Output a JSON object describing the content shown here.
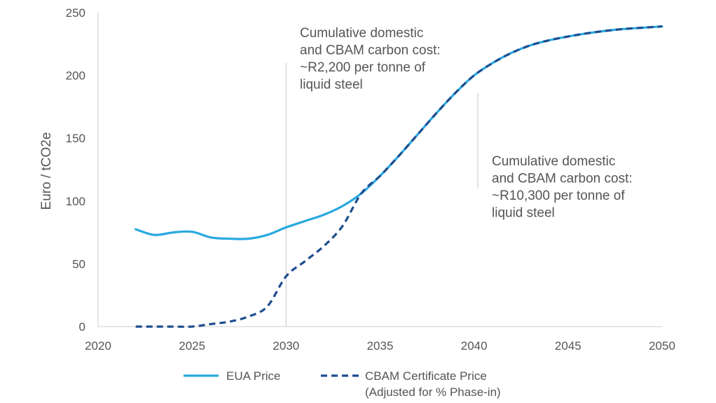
{
  "chart_data": {
    "type": "line",
    "xlim": [
      2020,
      2050
    ],
    "ylim": [
      0,
      250
    ],
    "x_ticks": [
      "2020",
      "2025",
      "2030",
      "2035",
      "2040",
      "2045",
      "2050"
    ],
    "y_ticks": [
      "0",
      "50",
      "100",
      "150",
      "200",
      "250"
    ],
    "ylabel": "Euro / tCO2e",
    "xlabel": "",
    "title": "",
    "grid": false,
    "legend_position": "bottom",
    "series": [
      {
        "name": "EUA Price",
        "style": "solid",
        "color": "#29a8e0",
        "points": [
          [
            2022,
            77.5
          ],
          [
            2023,
            73
          ],
          [
            2024,
            75
          ],
          [
            2025,
            75.5
          ],
          [
            2026,
            71
          ],
          [
            2027,
            70
          ],
          [
            2028,
            70
          ],
          [
            2029,
            73
          ],
          [
            2030,
            79
          ],
          [
            2031,
            84
          ],
          [
            2032,
            89
          ],
          [
            2033,
            96
          ],
          [
            2034,
            106
          ],
          [
            2035,
            120
          ],
          [
            2036,
            136
          ],
          [
            2037,
            153
          ],
          [
            2038,
            170
          ],
          [
            2039,
            186
          ],
          [
            2040,
            200
          ],
          [
            2041,
            210
          ],
          [
            2042,
            218
          ],
          [
            2043,
            224
          ],
          [
            2044,
            228
          ],
          [
            2045,
            231
          ],
          [
            2046,
            233.5
          ],
          [
            2047,
            235.5
          ],
          [
            2048,
            237
          ],
          [
            2049,
            238
          ],
          [
            2050,
            239
          ]
        ]
      },
      {
        "name": "CBAM Certificate Price",
        "name_note": "(Adjusted for % Phase-in)",
        "style": "dashed",
        "color": "#1d4e8f",
        "points": [
          [
            2022,
            0
          ],
          [
            2023,
            0
          ],
          [
            2024,
            0
          ],
          [
            2025,
            0
          ],
          [
            2026,
            2
          ],
          [
            2027,
            4
          ],
          [
            2028,
            8
          ],
          [
            2029,
            16
          ],
          [
            2030,
            40
          ],
          [
            2031,
            52
          ],
          [
            2032,
            64
          ],
          [
            2033,
            80
          ],
          [
            2034,
            106
          ],
          [
            2035,
            120
          ],
          [
            2036,
            136
          ],
          [
            2037,
            153
          ],
          [
            2038,
            170
          ],
          [
            2039,
            186
          ],
          [
            2040,
            200
          ],
          [
            2041,
            210
          ],
          [
            2042,
            218
          ],
          [
            2043,
            224
          ],
          [
            2044,
            228
          ],
          [
            2045,
            231
          ],
          [
            2046,
            233.5
          ],
          [
            2047,
            235.5
          ],
          [
            2048,
            237
          ],
          [
            2049,
            238
          ],
          [
            2050,
            239
          ]
        ]
      }
    ],
    "annotations": [
      {
        "x": 2030,
        "line_y": [
          0,
          210
        ],
        "lines": [
          "Cumulative domestic",
          "and CBAM carbon cost:",
          "~R2,200 per tonne of",
          "liquid steel"
        ]
      },
      {
        "x": 2040.2,
        "line_y": [
          110,
          186
        ],
        "lines": [
          "Cumulative domestic",
          "and CBAM carbon cost:",
          "~R10,300 per tonne of",
          "liquid steel"
        ]
      }
    ],
    "legend": [
      {
        "label": "EUA Price",
        "style": "solid"
      },
      {
        "label": "CBAM Certificate Price",
        "label2": "(Adjusted for % Phase-in)",
        "style": "dashed"
      }
    ]
  },
  "colors": {
    "eua": "#29a8e0",
    "cbam_dash": "#1d4e8f",
    "cbam_under": "#29a8e0",
    "axis": "#cccccc",
    "annotation_line": "#d0d0d0",
    "text": "#555555"
  }
}
